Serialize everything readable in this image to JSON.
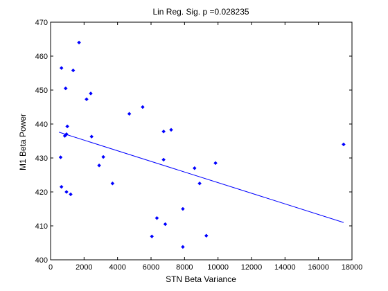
{
  "chart_data": {
    "type": "scatter",
    "title": "Lin Reg. Sig. p =0.028235",
    "xlabel": "STN Beta Variance",
    "ylabel": "M1 Beta Power",
    "xlim": [
      0,
      18000
    ],
    "ylim": [
      400,
      470
    ],
    "xticks": [
      0,
      2000,
      4000,
      6000,
      8000,
      10000,
      12000,
      14000,
      16000,
      18000
    ],
    "yticks": [
      400,
      410,
      420,
      430,
      440,
      450,
      460,
      470
    ],
    "grid": false,
    "marker_color": "#0000ff",
    "line_color": "#0000ff",
    "series": [
      {
        "values": [
          {
            "x": 650,
            "y": 456.5
          },
          {
            "x": 900,
            "y": 450.5
          },
          {
            "x": 1350,
            "y": 455.8
          },
          {
            "x": 1700,
            "y": 464.0
          },
          {
            "x": 2150,
            "y": 447.3
          },
          {
            "x": 2400,
            "y": 449.0
          },
          {
            "x": 1000,
            "y": 439.3
          },
          {
            "x": 950,
            "y": 437.0
          },
          {
            "x": 850,
            "y": 436.5
          },
          {
            "x": 2450,
            "y": 436.3
          },
          {
            "x": 600,
            "y": 430.2
          },
          {
            "x": 2900,
            "y": 427.8
          },
          {
            "x": 3150,
            "y": 430.3
          },
          {
            "x": 650,
            "y": 421.5
          },
          {
            "x": 950,
            "y": 420.0
          },
          {
            "x": 1200,
            "y": 419.3
          },
          {
            "x": 3700,
            "y": 422.5
          },
          {
            "x": 4700,
            "y": 443.0
          },
          {
            "x": 5500,
            "y": 445.0
          },
          {
            "x": 6750,
            "y": 437.8
          },
          {
            "x": 7200,
            "y": 438.3
          },
          {
            "x": 6750,
            "y": 429.5
          },
          {
            "x": 8600,
            "y": 427.0
          },
          {
            "x": 8900,
            "y": 422.5
          },
          {
            "x": 9850,
            "y": 428.5
          },
          {
            "x": 7900,
            "y": 415.0
          },
          {
            "x": 6350,
            "y": 412.3
          },
          {
            "x": 6850,
            "y": 410.5
          },
          {
            "x": 6050,
            "y": 406.9
          },
          {
            "x": 7900,
            "y": 403.8
          },
          {
            "x": 9300,
            "y": 407.1
          },
          {
            "x": 17500,
            "y": 434.0
          }
        ]
      }
    ],
    "fit_line": {
      "x": [
        500,
        17500
      ],
      "y": [
        437.6,
        411.0
      ]
    }
  }
}
